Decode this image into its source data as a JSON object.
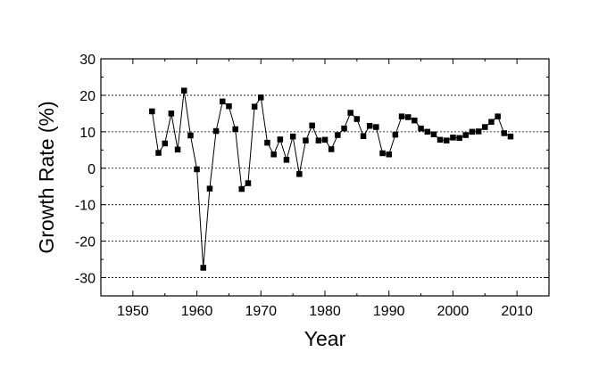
{
  "chart_data": {
    "type": "line",
    "title": "",
    "xlabel": "Year",
    "ylabel": "Growth Rate (%)",
    "xlim": [
      1945,
      2015
    ],
    "ylim": [
      -35,
      30
    ],
    "x_ticks": [
      1950,
      1960,
      1970,
      1980,
      1990,
      2000,
      2010
    ],
    "y_ticks": [
      -30,
      -20,
      -10,
      0,
      10,
      20,
      30
    ],
    "x_tick_labels": [
      "1950",
      "1960",
      "1970",
      "1980",
      "1990",
      "2000",
      "2010"
    ],
    "y_tick_labels": [
      "-30",
      "-20",
      "-10",
      "0",
      "10",
      "20",
      "30"
    ],
    "grid": "horizontal dashed",
    "legend": "none",
    "colors": {
      "line": "#000000",
      "marker": "#000000"
    },
    "series": [
      {
        "x": [
          1953,
          1954,
          1955,
          1956,
          1957,
          1958,
          1959,
          1960,
          1961,
          1962,
          1963,
          1964,
          1965,
          1966,
          1967,
          1968,
          1969,
          1970,
          1971,
          1972,
          1973,
          1974,
          1975,
          1976,
          1977,
          1978,
          1979,
          1980,
          1981,
          1982,
          1983,
          1984,
          1985,
          1986,
          1987,
          1988,
          1989,
          1990,
          1991,
          1992,
          1993,
          1994,
          1995,
          1996,
          1997,
          1998,
          1999,
          2000,
          2001,
          2002,
          2003,
          2004,
          2005,
          2006,
          2007,
          2008,
          2009
        ],
        "values": [
          15.6,
          4.2,
          6.8,
          15.0,
          5.1,
          21.3,
          9.0,
          -0.3,
          -27.3,
          -5.6,
          10.2,
          18.3,
          17.0,
          10.7,
          -5.7,
          -4.1,
          16.9,
          19.4,
          7.0,
          3.8,
          7.9,
          2.3,
          8.7,
          -1.6,
          7.6,
          11.7,
          7.6,
          7.8,
          5.2,
          9.1,
          10.9,
          15.2,
          13.5,
          8.8,
          11.6,
          11.3,
          4.1,
          3.8,
          9.2,
          14.2,
          14.0,
          13.1,
          10.9,
          10.0,
          9.3,
          7.8,
          7.6,
          8.4,
          8.3,
          9.1,
          10.0,
          10.1,
          11.3,
          12.7,
          14.2,
          9.6,
          8.7
        ]
      }
    ]
  }
}
